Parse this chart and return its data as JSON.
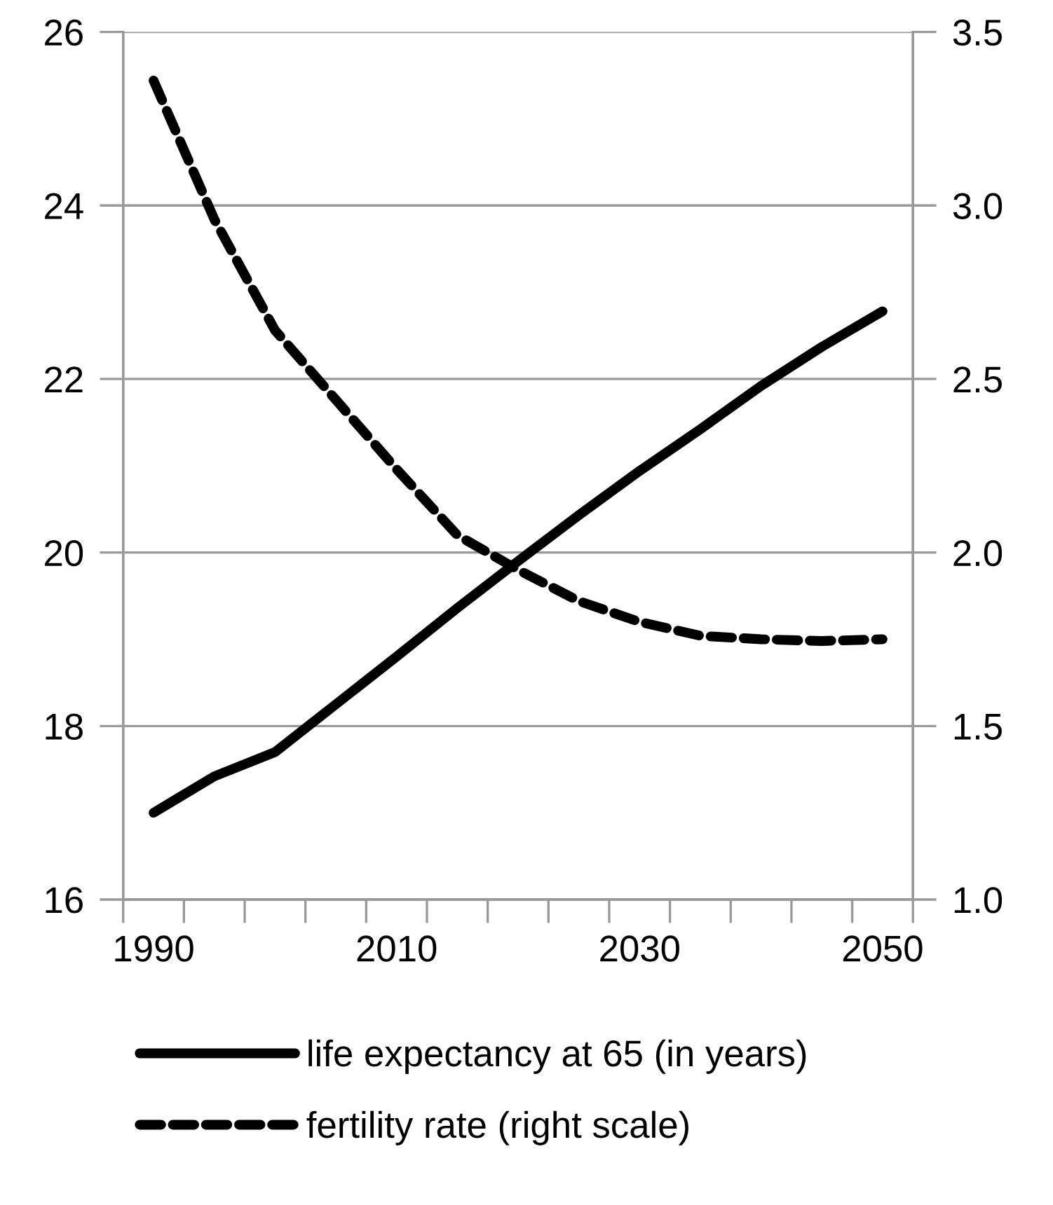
{
  "chart_data": {
    "type": "line",
    "categories": [
      "1990",
      null,
      null,
      null,
      "2010",
      null,
      null,
      null,
      "2030",
      null,
      null,
      null,
      "2050"
    ],
    "series": [
      {
        "name": "life expectancy at 65 (in years)",
        "color": "#000000",
        "line_style": "solid",
        "values": [
          17.0,
          17.42,
          17.7,
          18.25,
          18.8,
          19.36,
          19.9,
          20.43,
          20.94,
          21.42,
          21.92,
          22.37,
          22.78
        ]
      },
      {
        "name": "fertility rate (right scale)",
        "color": "#000000",
        "line_style": "dashed",
        "axis": "y2",
        "values": [
          3.36,
          2.96,
          2.64,
          2.44,
          2.24,
          2.05,
          1.95,
          1.86,
          1.8,
          1.76,
          1.75,
          1.745,
          1.75
        ]
      }
    ],
    "ylim": [
      16,
      26
    ],
    "yticks": [
      16,
      18,
      20,
      22,
      24,
      26
    ],
    "y2lim": [
      1.0,
      3.5
    ],
    "y2ticks": [
      {
        "value": 1.0,
        "label": "1.0"
      },
      {
        "value": 1.5,
        "label": "1.5"
      },
      {
        "value": 2.0,
        "label": "2.0"
      },
      {
        "value": 2.5,
        "label": "2.5"
      },
      {
        "value": 3.0,
        "label": "3.0"
      },
      {
        "value": 3.5,
        "label": "3.5"
      }
    ],
    "grid": "y",
    "legend": "bottom"
  }
}
